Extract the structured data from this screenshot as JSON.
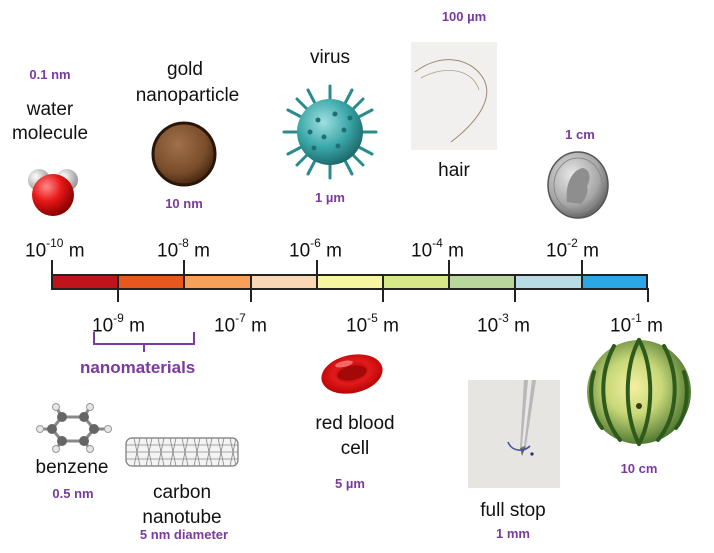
{
  "scale": {
    "segments": [
      "#c0141c",
      "#e8581e",
      "#f6a05a",
      "#fad7b4",
      "#f7f5a2",
      "#d6e78a",
      "#b9d69c",
      "#b8dbe5",
      "#2aa7e4"
    ],
    "upper_ticks": [
      {
        "base": "10",
        "exp": "-10",
        "unit": " m"
      },
      {
        "base": "10",
        "exp": "-8",
        "unit": " m"
      },
      {
        "base": "10",
        "exp": "-6",
        "unit": " m"
      },
      {
        "base": "10",
        "exp": "-4",
        "unit": " m"
      },
      {
        "base": "10",
        "exp": "-2",
        "unit": " m"
      }
    ],
    "lower_ticks": [
      {
        "base": "10",
        "exp": "-9",
        "unit": " m"
      },
      {
        "base": "10",
        "exp": "-7",
        "unit": " m"
      },
      {
        "base": "10",
        "exp": "-5",
        "unit": " m"
      },
      {
        "base": "10",
        "exp": "-3",
        "unit": " m"
      },
      {
        "base": "10",
        "exp": "-1",
        "unit": " m"
      }
    ]
  },
  "nanomaterials_label": "nanomaterials",
  "objects": {
    "water": {
      "name_line1": "water",
      "name_line2": "molecule",
      "size": "0.1 nm"
    },
    "gold": {
      "name_line1": "gold",
      "name_line2": "nanoparticle",
      "size": "10 nm"
    },
    "virus": {
      "name": "virus",
      "size": "1 µm"
    },
    "hair": {
      "name": "hair",
      "size": "100 µm"
    },
    "coin": {
      "size": "1 cm"
    },
    "benzene": {
      "name": "benzene",
      "size": "0.5 nm"
    },
    "nanotube": {
      "name_line1": "carbon",
      "name_line2": "nanotube",
      "size": "5 nm diameter"
    },
    "blood": {
      "name_line1": "red blood",
      "name_line2": "cell",
      "size": "5 µm"
    },
    "fullstop": {
      "name": "full stop",
      "size": "1 mm"
    },
    "melon": {
      "size": "10 cm"
    }
  }
}
